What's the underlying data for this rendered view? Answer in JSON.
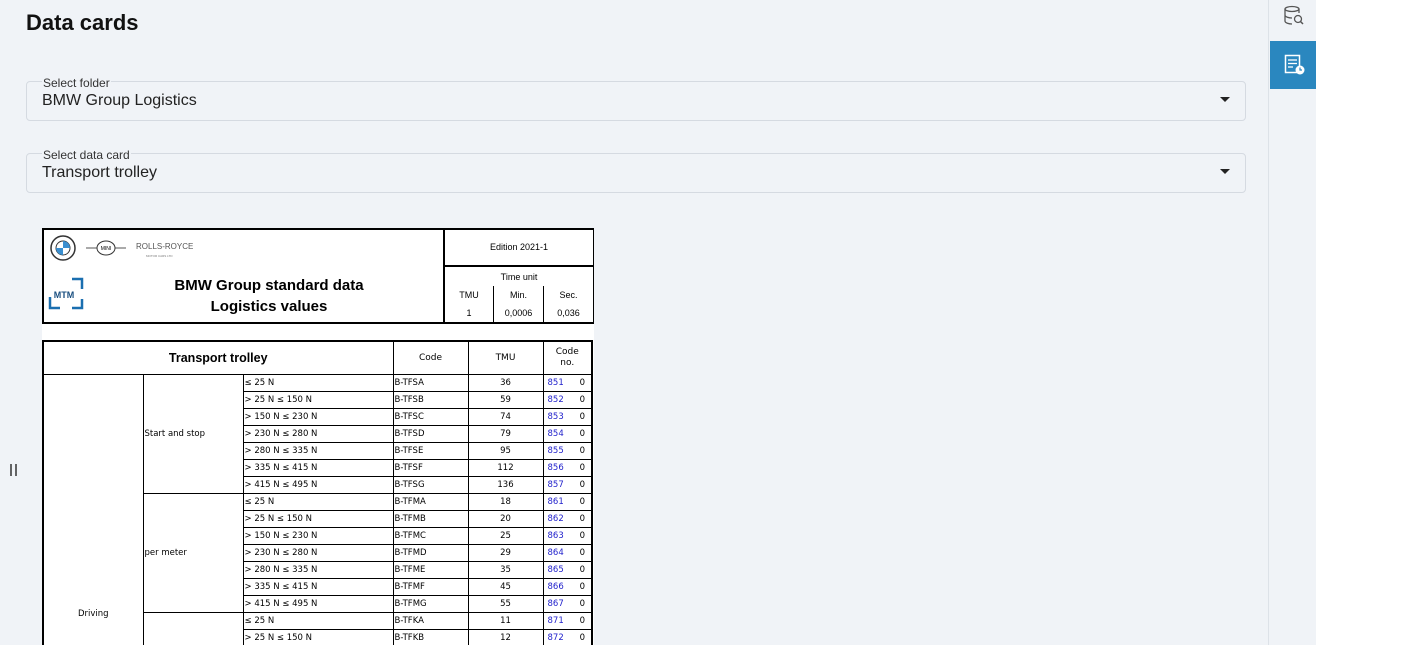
{
  "header": {
    "title": "Data cards"
  },
  "folder": {
    "label": "Select folder",
    "value": "BMW Group Logistics"
  },
  "data_card": {
    "label": "Select data card",
    "value": "Transport trolley"
  },
  "card": {
    "logos": {
      "mini": "MINI",
      "rolls_royce": "ROLLS-ROYCE",
      "rolls_royce_sub": "MOTOR CARS LTD",
      "mtm": "MTM"
    },
    "title_lines": [
      "BMW Group standard data",
      "Logistics values"
    ],
    "edition": "Edition 2021-1",
    "time_unit": {
      "label": "Time unit",
      "columns": [
        "TMU",
        "Min.",
        "Sec."
      ],
      "values": [
        "1",
        "0,0006",
        "0,036"
      ]
    }
  },
  "table": {
    "header": [
      "Transport trolley",
      "Code",
      "TMU",
      "Code no."
    ],
    "group": "Driving",
    "subgroups": [
      {
        "label": "Start and stop",
        "rows": [
          {
            "condition": "≤ 25 N",
            "code": "B-TFSA",
            "tmu": 36,
            "code_no": 851,
            "suffix": 0
          },
          {
            "condition": "> 25 N ≤ 150 N",
            "code": "B-TFSB",
            "tmu": 59,
            "code_no": 852,
            "suffix": 0
          },
          {
            "condition": "> 150 N ≤ 230 N",
            "code": "B-TFSC",
            "tmu": 74,
            "code_no": 853,
            "suffix": 0
          },
          {
            "condition": "> 230 N ≤ 280 N",
            "code": "B-TFSD",
            "tmu": 79,
            "code_no": 854,
            "suffix": 0
          },
          {
            "condition": "> 280 N ≤ 335 N",
            "code": "B-TFSE",
            "tmu": 95,
            "code_no": 855,
            "suffix": 0
          },
          {
            "condition": "> 335 N ≤ 415 N",
            "code": "B-TFSF",
            "tmu": 112,
            "code_no": 856,
            "suffix": 0
          },
          {
            "condition": "> 415 N ≤ 495 N",
            "code": "B-TFSG",
            "tmu": 136,
            "code_no": 857,
            "suffix": 0
          }
        ]
      },
      {
        "label": "per meter",
        "rows": [
          {
            "condition": "≤ 25 N",
            "code": "B-TFMA",
            "tmu": 18,
            "code_no": 861,
            "suffix": 0
          },
          {
            "condition": "> 25 N ≤ 150 N",
            "code": "B-TFMB",
            "tmu": 20,
            "code_no": 862,
            "suffix": 0
          },
          {
            "condition": "> 150 N ≤ 230 N",
            "code": "B-TFMC",
            "tmu": 25,
            "code_no": 863,
            "suffix": 0
          },
          {
            "condition": "> 230 N ≤ 280 N",
            "code": "B-TFMD",
            "tmu": 29,
            "code_no": 864,
            "suffix": 0
          },
          {
            "condition": "> 280 N ≤ 335 N",
            "code": "B-TFME",
            "tmu": 35,
            "code_no": 865,
            "suffix": 0
          },
          {
            "condition": "> 335 N ≤ 415 N",
            "code": "B-TFMF",
            "tmu": 45,
            "code_no": 866,
            "suffix": 0
          },
          {
            "condition": "> 415 N ≤ 495 N",
            "code": "B-TFMG",
            "tmu": 55,
            "code_no": 867,
            "suffix": 0
          }
        ]
      },
      {
        "label": null,
        "rows": [
          {
            "condition": "≤ 25 N",
            "code": "B-TFKA",
            "tmu": 11,
            "code_no": 871,
            "suffix": 0
          },
          {
            "condition": "> 25 N ≤ 150 N",
            "code": "B-TFKB",
            "tmu": 12,
            "code_no": 872,
            "suffix": 0
          }
        ]
      }
    ]
  }
}
